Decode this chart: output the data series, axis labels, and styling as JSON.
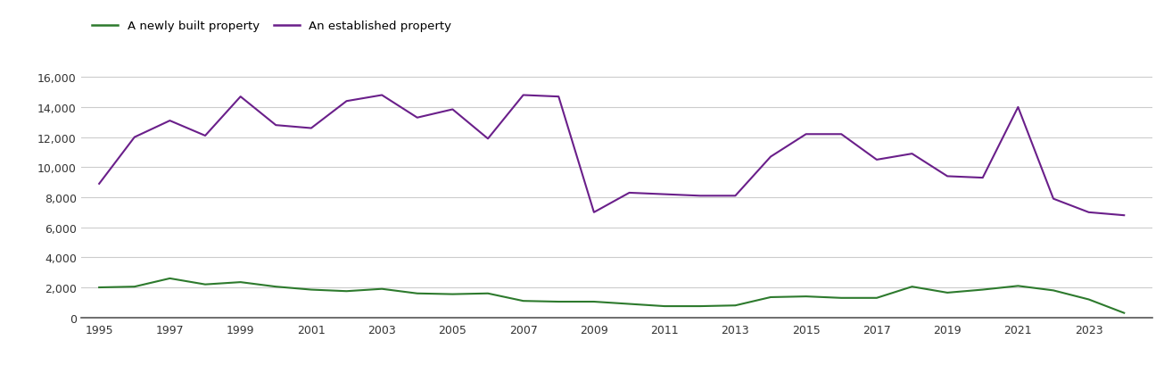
{
  "years": [
    1995,
    1996,
    1997,
    1998,
    1999,
    2000,
    2001,
    2002,
    2003,
    2004,
    2005,
    2006,
    2007,
    2008,
    2009,
    2010,
    2011,
    2012,
    2013,
    2014,
    2015,
    2016,
    2017,
    2018,
    2019,
    2020,
    2021,
    2022,
    2023,
    2024
  ],
  "newly_built": [
    2000,
    2050,
    2600,
    2200,
    2350,
    2050,
    1850,
    1750,
    1900,
    1600,
    1550,
    1600,
    1100,
    1050,
    1050,
    900,
    750,
    750,
    800,
    1350,
    1400,
    1300,
    1300,
    2050,
    1650,
    1850,
    2100,
    1800,
    1200,
    300
  ],
  "established": [
    8900,
    12000,
    13100,
    12100,
    14700,
    12800,
    12600,
    14400,
    14800,
    13300,
    13850,
    11900,
    14800,
    14700,
    7000,
    8300,
    8200,
    8100,
    8100,
    10700,
    12200,
    12200,
    10500,
    10900,
    9400,
    9300,
    14000,
    7900,
    7000,
    6800
  ],
  "newly_built_color": "#2d7a2d",
  "established_color": "#6a1f8a",
  "background_color": "#ffffff",
  "grid_color": "#cccccc",
  "legend_labels": [
    "A newly built property",
    "An established property"
  ],
  "yticks": [
    0,
    2000,
    4000,
    6000,
    8000,
    10000,
    12000,
    14000,
    16000
  ],
  "ytick_labels": [
    "0",
    "2,000",
    "4,000",
    "6,000",
    "8,000",
    "10,000",
    "12,000",
    "14,000",
    "16,000"
  ],
  "xticks": [
    1995,
    1997,
    1999,
    2001,
    2003,
    2005,
    2007,
    2009,
    2011,
    2013,
    2015,
    2017,
    2019,
    2021,
    2023
  ],
  "ylim": [
    0,
    16800
  ],
  "xlim": [
    1994.5,
    2024.8
  ]
}
